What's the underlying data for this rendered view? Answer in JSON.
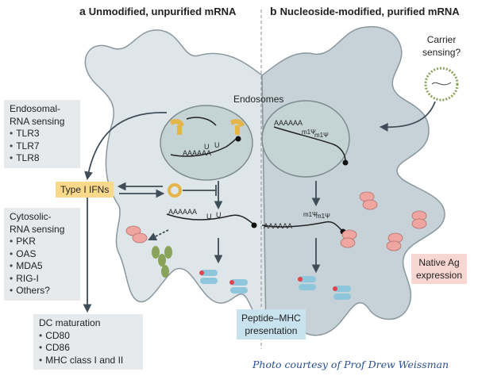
{
  "panel_a": {
    "letter": "a",
    "title": "Unmodified, unpurified mRNA"
  },
  "panel_b": {
    "letter": "b",
    "title": "Nucleoside-modified, purified mRNA"
  },
  "endosomes_label": "Endosomes",
  "carrier_sensing": [
    "Carrier",
    "sensing?"
  ],
  "endosomal_box": {
    "title": [
      "Endosomal-",
      "RNA sensing"
    ],
    "items": [
      "TLR3",
      "TLR7",
      "TLR8"
    ]
  },
  "type1_ifn": "Type I IFNs",
  "cytosolic_box": {
    "title": [
      "Cytosolic-",
      "RNA sensing"
    ],
    "items": [
      "PKR",
      "OAS",
      "MDA5",
      "RIG-I",
      "Others?"
    ]
  },
  "dc_box": {
    "title": "DC maturation",
    "items": [
      "CD80",
      "CD86",
      "MHC class I and II"
    ]
  },
  "peptide_mhc": [
    "Peptide–MHC",
    "presentation"
  ],
  "native_ag": [
    "Native Ag",
    "expression"
  ],
  "rna_labels": {
    "aaaaa": "AAAAAA",
    "u": "U",
    "m1psi": "m1Ψ"
  },
  "credit": "Photo courtesy of Prof Drew Weissman",
  "colors": {
    "cell": "#dfe6ea",
    "cell_edge": "#8a979f",
    "vesicle": "#c4d4d4",
    "arrow": "#3e4d58",
    "receptor": "#e3b54a",
    "pink": "#f0a6a0",
    "green": "#8aa35a",
    "blue": "#8ec6dc",
    "red": "#e2434b"
  }
}
